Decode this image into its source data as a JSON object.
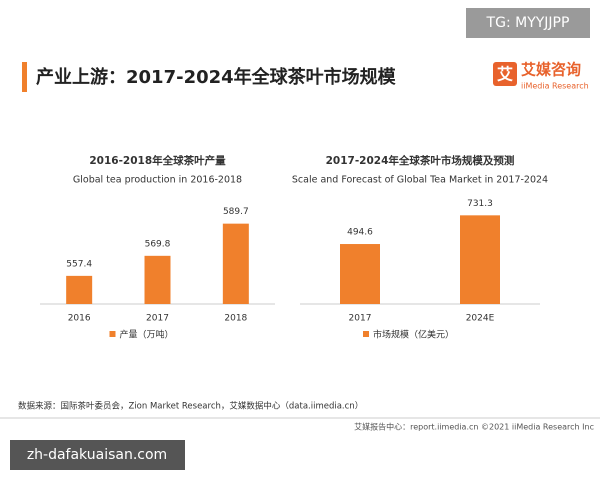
{
  "header": {
    "title": "产业上游：2017-2024年全球茶叶市场规模"
  },
  "logo": {
    "icon": "艾",
    "name": "艾媒咨询",
    "sub": "iiMedia Research"
  },
  "watermark_top": "TG: MYYJJPP",
  "chart_data": [
    {
      "type": "bar",
      "title": "2016-2018年全球茶叶产量",
      "subtitle": "Global tea production in 2016-2018",
      "categories": [
        "2016",
        "2017",
        "2018"
      ],
      "series": [
        {
          "name": "产量（万吨）",
          "color": "#f0802c",
          "values": [
            557.4,
            569.8,
            589.7
          ]
        }
      ],
      "ylim": [
        540,
        600
      ]
    },
    {
      "type": "bar",
      "title": "2017-2024年全球茶叶市场规模及预测",
      "subtitle": "Scale and Forecast of Global Tea Market in 2017-2024",
      "categories": [
        "2017",
        "2024E"
      ],
      "series": [
        {
          "name": "市场规模（亿美元）",
          "color": "#f0802c",
          "values": [
            494.6,
            731.3
          ]
        }
      ],
      "ylim": [
        0,
        800
      ]
    }
  ],
  "source": "数据来源：国际茶叶委员会，Zion Market Research，艾媒数据中心（data.iimedia.cn）",
  "footer": "艾媒报告中心：report.iimedia.cn  ©2021  iiMedia Research  Inc",
  "watermark_bottom": "zh-dafakuaisan.com"
}
